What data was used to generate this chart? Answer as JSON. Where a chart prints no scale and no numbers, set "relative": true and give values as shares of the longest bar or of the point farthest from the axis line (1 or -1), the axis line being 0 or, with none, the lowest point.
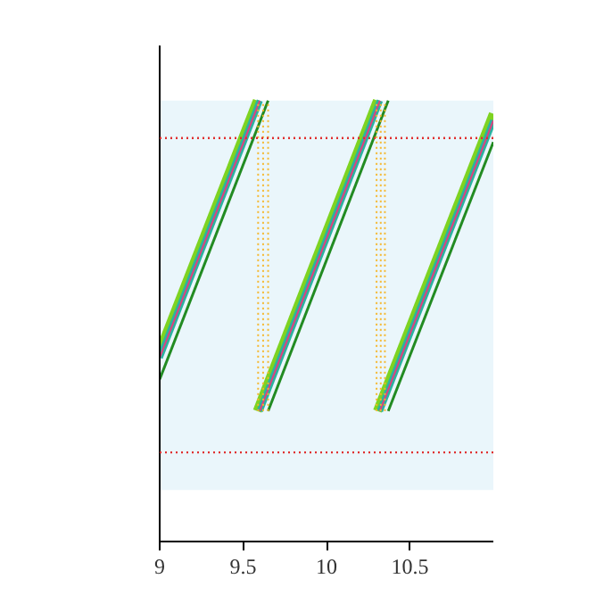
{
  "chart_data": {
    "type": "line",
    "relative": true,
    "xlim": [
      9,
      11
    ],
    "xticks": [
      9,
      9.5,
      10,
      10.5
    ],
    "grid": false,
    "marker": "none",
    "line_style": "solid",
    "series": [
      {
        "color": "#7ed321",
        "x": [
          9,
          9.585
        ],
        "values": [
          0.432,
          1.0
        ]
      },
      {
        "color": "#2ab3a0",
        "x": [
          9,
          9.6
        ],
        "values": [
          0.417,
          1.0
        ]
      },
      {
        "color": "#e0407f",
        "x": [
          9,
          9.6
        ],
        "values": [
          0.417,
          1.0
        ]
      },
      {
        "color": "#228b22",
        "x": [
          9,
          9.65
        ],
        "values": [
          0.368,
          1.0
        ]
      },
      {
        "color": "#7ed321",
        "x": [
          9.585,
          10.305
        ],
        "values": [
          0.296,
          1.0
        ]
      },
      {
        "color": "#2ab3a0",
        "x": [
          9.6,
          10.32
        ],
        "values": [
          0.296,
          1.0
        ]
      },
      {
        "color": "#e0407f",
        "x": [
          9.6,
          10.32
        ],
        "values": [
          0.296,
          1.0
        ]
      },
      {
        "color": "#228b22",
        "x": [
          9.65,
          10.37
        ],
        "values": [
          0.296,
          1.0
        ]
      },
      {
        "color": "#7ed321",
        "x": [
          10.305,
          11
        ],
        "values": [
          0.296,
          0.97
        ]
      },
      {
        "color": "#2ab3a0",
        "x": [
          10.32,
          11
        ],
        "values": [
          0.296,
          0.955
        ]
      },
      {
        "color": "#e0407f",
        "x": [
          10.32,
          11
        ],
        "values": [
          0.296,
          0.955
        ]
      },
      {
        "color": "#228b22",
        "x": [
          10.37,
          11
        ],
        "values": [
          0.296,
          0.906
        ]
      },
      {
        "color": "#f5b62a",
        "line_style": "dotted",
        "x": [
          9.59,
          9.59
        ],
        "values": [
          0.296,
          1.0
        ]
      },
      {
        "color": "#f5b62a",
        "line_style": "dotted",
        "x": [
          9.62,
          9.62
        ],
        "values": [
          0.296,
          1.0
        ]
      },
      {
        "color": "#f5b62a",
        "line_style": "dotted",
        "x": [
          9.65,
          9.65
        ],
        "values": [
          0.296,
          1.0
        ]
      },
      {
        "color": "#f5b62a",
        "line_style": "dotted",
        "x": [
          10.3,
          10.3
        ],
        "values": [
          0.296,
          1.0
        ]
      },
      {
        "color": "#f5b62a",
        "line_style": "dotted",
        "x": [
          10.325,
          10.325
        ],
        "values": [
          0.296,
          1.0
        ]
      },
      {
        "color": "#f5b62a",
        "line_style": "dotted",
        "x": [
          10.35,
          10.35
        ],
        "values": [
          0.296,
          1.0
        ]
      }
    ],
    "bands": [
      {
        "axis": "y",
        "from": 0.117,
        "to": 1.0,
        "color": "#eaf6fb"
      }
    ],
    "ref_lines": [
      {
        "axis": "y",
        "value": 0.915,
        "color": "#e03030",
        "line_style": "dotted"
      },
      {
        "axis": "y",
        "value": 0.202,
        "color": "#e03030",
        "line_style": "dotted"
      }
    ]
  }
}
